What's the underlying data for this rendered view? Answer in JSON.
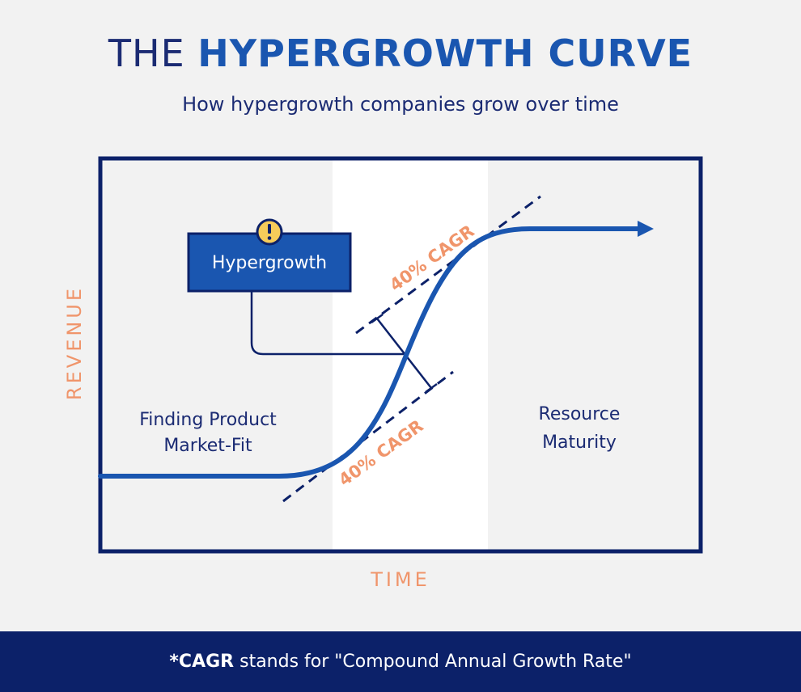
{
  "header": {
    "title_light": "THE",
    "title_bold": "HYPERGROWTH CURVE",
    "subtitle": "How hypergrowth companies grow over time"
  },
  "diagram": {
    "y_axis_label": "REVENUE",
    "x_axis_label": "TIME",
    "callout_label": "Hypergrowth",
    "callout_icon": "exclamation-icon",
    "upper_rate_label": "40% CAGR",
    "lower_rate_label": "40% CAGR",
    "left_phase_line1": "Finding Product",
    "left_phase_line2": "Market-Fit",
    "right_phase_line1": "Resource",
    "right_phase_line2": "Maturity"
  },
  "footer": {
    "term": "*CAGR",
    "definition": " stands for \"Compound Annual Growth Rate\""
  },
  "colors": {
    "navy": "#0c2169",
    "blue": "#1a56b0",
    "orange": "#f0956b",
    "background": "#f2f2f2",
    "highlight_band": "#ffffff",
    "warning_yellow": "#f6cc5a"
  }
}
